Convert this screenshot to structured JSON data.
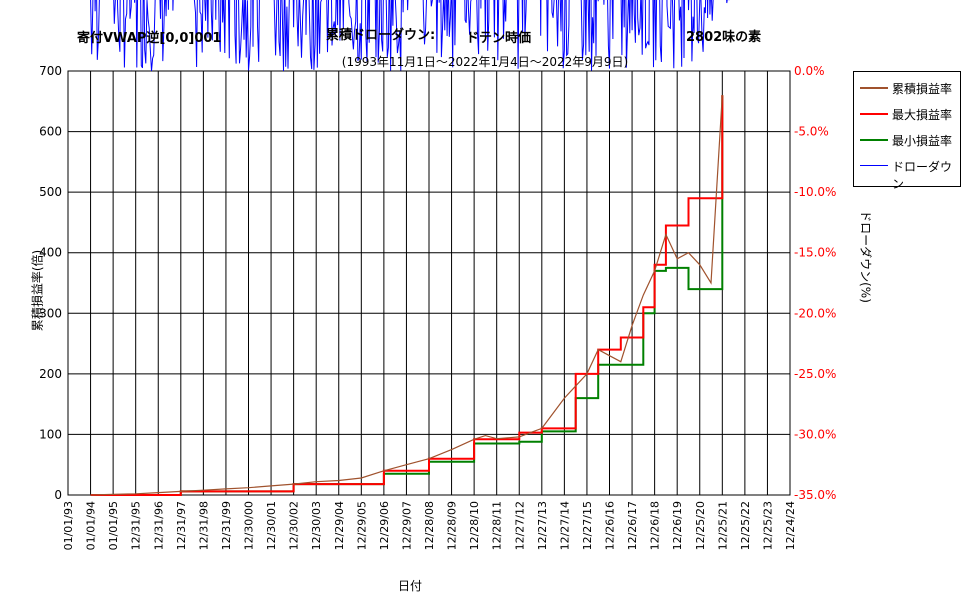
{
  "header": {
    "strategy": "寄付VWAP逆[0,0]001",
    "chart_kind": "累積ドローダウン:",
    "price_basis": "ドテン時価",
    "stock": "2802味の素",
    "period": "(1993年11月1日～2022年1月4日～2022年9月9日)"
  },
  "chart_data": {
    "type": "line",
    "title": "累積ドローダウン:",
    "xlabel": "日付",
    "ylabel_left": "累積損益率(倍)",
    "ylabel_right": "ドローダウン(%)",
    "y_left_ticks": [
      "0",
      "100",
      "200",
      "300",
      "400",
      "500",
      "600",
      "700"
    ],
    "y_left_range": [
      0,
      700
    ],
    "y_right_ticks": [
      "0.0%",
      "-5.0%",
      "-10.0%",
      "-15.0%",
      "-20.0%",
      "-25.0%",
      "-30.0%",
      "-35.0%"
    ],
    "y_right_range": [
      -35,
      0
    ],
    "x_ticks": [
      "01/01/93",
      "01/01/94",
      "01/01/95",
      "12/31/95",
      "12/31/96",
      "12/31/97",
      "12/31/98",
      "12/31/99",
      "12/30/00",
      "12/30/01",
      "12/30/02",
      "12/30/03",
      "12/29/04",
      "12/29/05",
      "12/29/06",
      "12/29/07",
      "12/28/08",
      "12/28/09",
      "12/28/10",
      "12/28/11",
      "12/27/12",
      "12/27/13",
      "12/27/14",
      "12/27/15",
      "12/26/16",
      "12/26/17",
      "12/26/18",
      "12/26/19",
      "12/25/20",
      "12/25/21",
      "12/25/22",
      "12/25/23",
      "12/24/24"
    ],
    "grid": true,
    "legend_position": "right",
    "legend": [
      "累積損益率",
      "最大損益率",
      "最小損益率",
      "ドローダウン"
    ],
    "colors": {
      "cumulative": "#a0522d",
      "max": "#ff0000",
      "min": "#008000",
      "drawdown": "#0000ff"
    },
    "series": [
      {
        "name": "累積損益率",
        "x": [
          1.0,
          2.0,
          3.0,
          4.0,
          5.0,
          6.0,
          7.0,
          8.0,
          9.0,
          10.0,
          11.0,
          12.0,
          13.0,
          14.0,
          15.0,
          16.0,
          17.0,
          18.0,
          18.5,
          19.0,
          20.0,
          20.5,
          21.0,
          22.0,
          23.0,
          23.5,
          24.0,
          24.5,
          25.0,
          25.5,
          26.0,
          26.5,
          27.0,
          27.5,
          28.0,
          28.5,
          29.0
        ],
        "values": [
          0,
          1,
          2,
          4,
          6,
          8,
          10,
          12,
          15,
          18,
          22,
          24,
          28,
          40,
          50,
          60,
          75,
          92,
          98,
          93,
          96,
          103,
          110,
          160,
          200,
          240,
          230,
          220,
          280,
          330,
          370,
          430,
          390,
          400,
          380,
          350,
          660
        ]
      },
      {
        "name": "最大損益率",
        "x": [
          1.0,
          5.0,
          10.0,
          14.0,
          16.0,
          18.0,
          20.0,
          21.0,
          22.5,
          23.5,
          24.5,
          25.5,
          26.0,
          26.5,
          27.0,
          27.5,
          28.5,
          29.0
        ],
        "values": [
          0,
          6,
          18,
          40,
          60,
          92,
          103,
          110,
          200,
          240,
          260,
          310,
          380,
          445,
          445,
          490,
          490,
          660
        ]
      },
      {
        "name": "最小損益率",
        "x": [
          1.0,
          5.0,
          10.0,
          14.0,
          16.0,
          18.0,
          20.0,
          21.0,
          22.5,
          23.5,
          24.5,
          25.5,
          26.0,
          26.5,
          27.0,
          27.5,
          28.5,
          29.0
        ],
        "values": [
          0,
          6,
          18,
          35,
          55,
          85,
          88,
          105,
          160,
          215,
          215,
          300,
          370,
          375,
          375,
          340,
          340,
          660
        ]
      },
      {
        "name": "ドローダウン",
        "drawdown_pct_summary": "oscillates between 0% and about -35%; deepest near 01/01/95, 12/31/97, 12/30/00 and 12/25/21"
      }
    ]
  }
}
